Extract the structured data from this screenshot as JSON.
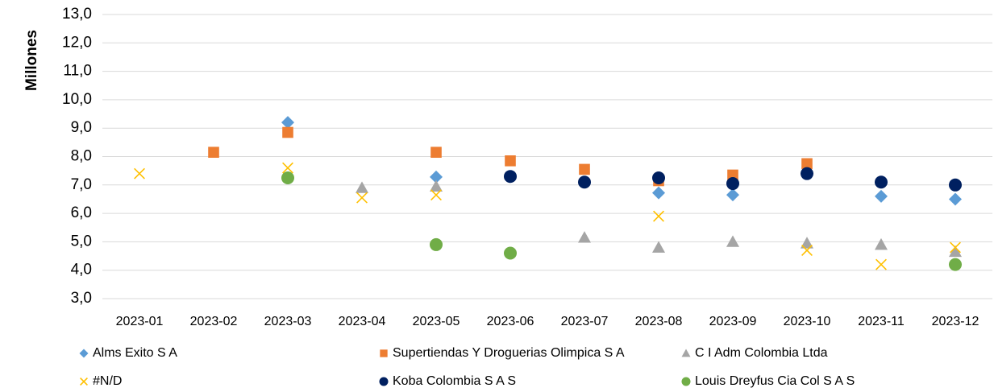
{
  "chart_data": {
    "type": "scatter",
    "ylabel": "Millones",
    "categories": [
      "2023-01",
      "2023-02",
      "2023-03",
      "2023-04",
      "2023-05",
      "2023-06",
      "2023-07",
      "2023-08",
      "2023-09",
      "2023-10",
      "2023-11",
      "2023-12"
    ],
    "ylim": [
      3,
      13
    ],
    "yticks": [
      {
        "value": 3,
        "label": "3,0"
      },
      {
        "value": 4,
        "label": "4,0"
      },
      {
        "value": 5,
        "label": "5,0"
      },
      {
        "value": 6,
        "label": "6,0"
      },
      {
        "value": 7,
        "label": "7,0"
      },
      {
        "value": 8,
        "label": "8,0"
      },
      {
        "value": 9,
        "label": "9,0"
      },
      {
        "value": 10,
        "label": "10,0"
      },
      {
        "value": 11,
        "label": "11,0"
      },
      {
        "value": 12,
        "label": "12,0"
      },
      {
        "value": 13,
        "label": "13,0"
      }
    ],
    "grid": true,
    "legend": "bottom",
    "series": [
      {
        "name": "Alms Exito S A",
        "color": "#5b9bd5",
        "marker": "diamond",
        "values": [
          null,
          null,
          9.2,
          null,
          7.28,
          null,
          null,
          6.72,
          6.65,
          null,
          6.6,
          6.5
        ]
      },
      {
        "name": "Supertiendas Y Droguerias Olimpica S A",
        "color": "#ed7d31",
        "marker": "square",
        "values": [
          null,
          8.15,
          8.85,
          null,
          8.15,
          7.85,
          7.55,
          7.15,
          7.35,
          7.75,
          null,
          null
        ]
      },
      {
        "name": "C I Adm Colombia Ltda",
        "color": "#a5a5a5",
        "marker": "triangle",
        "values": [
          null,
          null,
          null,
          6.9,
          6.95,
          null,
          5.15,
          4.8,
          5.0,
          4.95,
          4.9,
          4.65
        ]
      },
      {
        "name": "#N/D",
        "color": "#ffc000",
        "marker": "x",
        "values": [
          7.4,
          null,
          7.6,
          6.55,
          6.65,
          null,
          null,
          5.9,
          null,
          4.7,
          4.2,
          4.8
        ]
      },
      {
        "name": "Koba Colombia S A S",
        "color": "#002060",
        "marker": "circle",
        "values": [
          null,
          null,
          null,
          null,
          null,
          7.3,
          7.1,
          7.25,
          7.05,
          7.4,
          7.1,
          7.0
        ]
      },
      {
        "name": "Louis Dreyfus Cia Col S A S",
        "color": "#70ad47",
        "marker": "circle",
        "values": [
          null,
          null,
          7.25,
          null,
          4.9,
          4.6,
          null,
          null,
          null,
          null,
          null,
          4.2
        ]
      }
    ]
  }
}
